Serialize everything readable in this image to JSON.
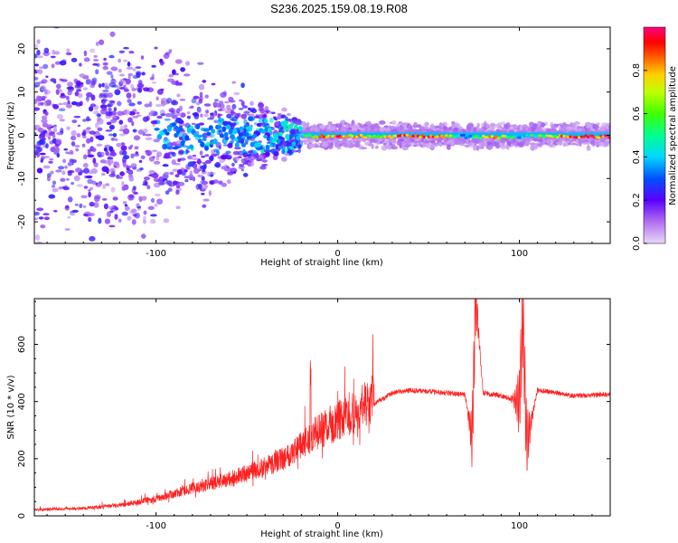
{
  "title": "S236.2025.159.08.19.R08",
  "chart_data": [
    {
      "type": "heatmap",
      "xlabel": "Height of straight line (km)",
      "ylabel": "Frequency (Hz)",
      "xlim": [
        -167,
        150
      ],
      "ylim": [
        -25,
        25
      ],
      "xticks": [
        -100,
        0,
        100
      ],
      "yticks": [
        -20,
        -10,
        0,
        10,
        20
      ],
      "colorbar": {
        "label": "Normalized spectral amplitude",
        "range": [
          0,
          1
        ],
        "ticks": [
          "0.0",
          "0.2",
          "0.4",
          "0.6",
          "0.8"
        ],
        "colormap": [
          "#e8d8f8",
          "#7a1ee8",
          "#2a00ff",
          "#00c8ff",
          "#00ff80",
          "#40ff00",
          "#ffff00",
          "#ff8000",
          "#ff0000",
          "#ff0080"
        ]
      },
      "ridge": [
        {
          "x": -90,
          "freq": 0,
          "amp": 0.35
        },
        {
          "x": -50,
          "freq": 0,
          "amp": 0.4
        },
        {
          "x": -20,
          "freq": 0,
          "amp": 0.5
        },
        {
          "x": -10,
          "freq": -1,
          "amp": 0.85
        },
        {
          "x": 0,
          "freq": -1,
          "amp": 0.9
        },
        {
          "x": 20,
          "freq": -1,
          "amp": 0.7
        },
        {
          "x": 40,
          "freq": -1,
          "amp": 0.95
        },
        {
          "x": 60,
          "freq": -1,
          "amp": 0.85
        },
        {
          "x": 70,
          "freq": -1,
          "amp": 0.3
        },
        {
          "x": 85,
          "freq": -2,
          "amp": 0.9
        },
        {
          "x": 100,
          "freq": -1,
          "amp": 0.4
        },
        {
          "x": 130,
          "freq": -1,
          "amp": 0.95
        }
      ]
    },
    {
      "type": "line",
      "xlabel": "Height of straight line (km)",
      "ylabel": "SNR (10 * v/v)",
      "xlim": [
        -167,
        150
      ],
      "ylim": [
        0,
        760
      ],
      "xticks": [
        -100,
        0,
        100
      ],
      "yticks": [
        0,
        200,
        400,
        600
      ],
      "color": "#ff2020",
      "series": [
        {
          "x": [
            -167,
            -140,
            -120,
            -100,
            -80,
            -60,
            -40,
            -30,
            -20,
            -10,
            0,
            10,
            20,
            30,
            40,
            60,
            70,
            74,
            76,
            80,
            90,
            100,
            102,
            104,
            110,
            130,
            150
          ],
          "values": [
            20,
            25,
            35,
            55,
            90,
            120,
            160,
            190,
            230,
            280,
            310,
            340,
            390,
            430,
            440,
            430,
            425,
            270,
            770,
            430,
            420,
            400,
            700,
            250,
            440,
            420,
            425
          ]
        }
      ]
    }
  ]
}
